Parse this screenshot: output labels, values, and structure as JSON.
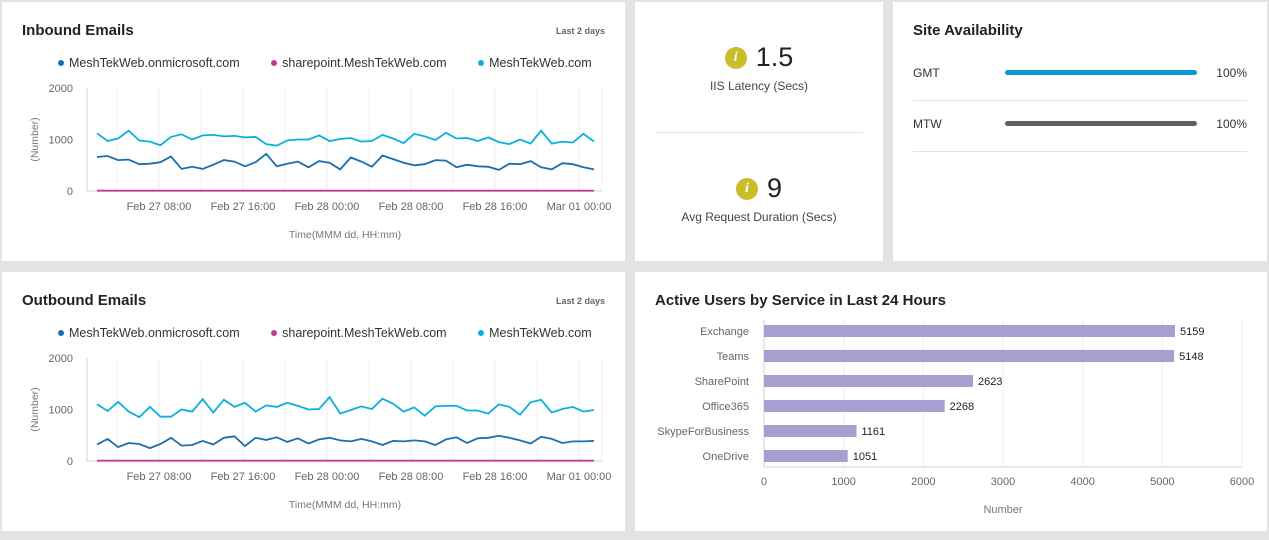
{
  "inbound": {
    "title": "Inbound Emails",
    "range": "Last 2 days",
    "chart_data": {
      "type": "line",
      "ylabel": "(Number)",
      "xlabel": "Time(MMM dd, HH:mm)",
      "ylim": [
        0,
        2000
      ],
      "yticks": [
        0,
        1000,
        2000
      ],
      "xticks": [
        "Feb 27 08:00",
        "Feb 27 16:00",
        "Feb 28 00:00",
        "Feb 28 08:00",
        "Feb 28 16:00",
        "Mar 01 00:00"
      ],
      "series": [
        {
          "name": "MeshTekWeb.onmicrosoft.com",
          "color": "#1a6fb0",
          "values": [
            660,
            680,
            600,
            610,
            520,
            530,
            560,
            670,
            430,
            470,
            430,
            510,
            600,
            570,
            480,
            560,
            720,
            480,
            530,
            570,
            460,
            580,
            550,
            420,
            650,
            570,
            470,
            690,
            620,
            550,
            500,
            520,
            600,
            590,
            460,
            510,
            480,
            470,
            410,
            530,
            520,
            580,
            460,
            420,
            540,
            520,
            460,
            420
          ]
        },
        {
          "name": "sharepoint.MeshTekWeb.com",
          "color": "#c2399a",
          "values": [
            5,
            5,
            5,
            5,
            5,
            5,
            5,
            5,
            5,
            5,
            5,
            5,
            5,
            5,
            5,
            5,
            5,
            5,
            5,
            5,
            5,
            5,
            5,
            5,
            5,
            5,
            5,
            5,
            5,
            5,
            5,
            5,
            5,
            5,
            5,
            5,
            5,
            5,
            5,
            5,
            5,
            5,
            5,
            5,
            5,
            5,
            5,
            5
          ]
        },
        {
          "name": "MeshTekWeb.com",
          "color": "#0ab0de",
          "values": [
            1120,
            970,
            1020,
            1170,
            980,
            960,
            890,
            1050,
            1100,
            1000,
            1080,
            1090,
            1060,
            1070,
            1040,
            1050,
            910,
            880,
            980,
            1000,
            1000,
            1080,
            970,
            1010,
            1030,
            960,
            970,
            1090,
            1020,
            930,
            1110,
            1060,
            990,
            1130,
            1020,
            1030,
            970,
            1040,
            950,
            910,
            1000,
            920,
            1170,
            920,
            960,
            940,
            1110,
            960
          ]
        }
      ]
    }
  },
  "outbound": {
    "title": "Outbound Emails",
    "range": "Last 2 days",
    "chart_data": {
      "type": "line",
      "ylabel": "(Number)",
      "xlabel": "Time(MMM dd, HH:mm)",
      "ylim": [
        0,
        2000
      ],
      "yticks": [
        0,
        1000,
        2000
      ],
      "xticks": [
        "Feb 27 08:00",
        "Feb 27 16:00",
        "Feb 28 00:00",
        "Feb 28 08:00",
        "Feb 28 16:00",
        "Mar 01 00:00"
      ],
      "series": [
        {
          "name": "MeshTekWeb.onmicrosoft.com",
          "color": "#1a6fb0",
          "values": [
            320,
            430,
            270,
            350,
            330,
            250,
            330,
            450,
            300,
            310,
            390,
            320,
            450,
            480,
            290,
            450,
            410,
            460,
            370,
            440,
            340,
            420,
            450,
            400,
            380,
            430,
            380,
            310,
            390,
            380,
            400,
            380,
            310,
            420,
            460,
            350,
            440,
            450,
            490,
            450,
            400,
            340,
            470,
            430,
            350,
            380,
            380,
            390
          ]
        },
        {
          "name": "sharepoint.MeshTekWeb.com",
          "color": "#c2399a",
          "values": [
            5,
            5,
            5,
            5,
            5,
            5,
            5,
            5,
            5,
            5,
            5,
            5,
            5,
            5,
            5,
            5,
            5,
            5,
            5,
            5,
            5,
            5,
            5,
            5,
            5,
            5,
            5,
            5,
            5,
            5,
            5,
            5,
            5,
            5,
            5,
            5,
            5,
            5,
            5,
            5,
            5,
            5,
            5,
            5,
            5,
            5,
            5,
            5
          ]
        },
        {
          "name": "MeshTekWeb.com",
          "color": "#0ab0de",
          "values": [
            1100,
            970,
            1150,
            960,
            850,
            1050,
            860,
            860,
            1000,
            960,
            1200,
            940,
            1190,
            1050,
            1130,
            960,
            1080,
            1050,
            1130,
            1070,
            1000,
            1010,
            1240,
            920,
            990,
            1060,
            1010,
            1210,
            1110,
            960,
            1040,
            880,
            1060,
            1070,
            1070,
            980,
            980,
            920,
            1100,
            1050,
            900,
            1140,
            1190,
            940,
            1010,
            1050,
            960,
            990
          ]
        }
      ]
    }
  },
  "kpis": [
    {
      "value": "1.5",
      "label": "IIS Latency (Secs)",
      "icon": "info-icon"
    },
    {
      "value": "9",
      "label": "Avg Request Duration (Secs)",
      "icon": "info-icon"
    }
  ],
  "availability": {
    "title": "Site Availability",
    "sites": [
      {
        "name": "GMT",
        "percent": 100,
        "percent_label": "100%",
        "color": "#0a9ad6"
      },
      {
        "name": "MTW",
        "percent": 100,
        "percent_label": "100%",
        "color": "#5f5f5f"
      }
    ]
  },
  "active_users": {
    "title": "Active Users by Service in Last 24 Hours",
    "chart_data": {
      "type": "bar",
      "orientation": "horizontal",
      "categories": [
        "Exchange",
        "Teams",
        "SharePoint",
        "Office365",
        "SkypeForBusiness",
        "OneDrive"
      ],
      "values": [
        5159,
        5148,
        2623,
        2268,
        1161,
        1051
      ],
      "labels": [
        "5159",
        "5148",
        "2623",
        "2268",
        "1161",
        "1051"
      ],
      "xlim": [
        0,
        6000
      ],
      "xticks": [
        0,
        1000,
        2000,
        3000,
        4000,
        5000,
        6000
      ],
      "xlabel": "Number",
      "color": "#a89fd0"
    }
  }
}
